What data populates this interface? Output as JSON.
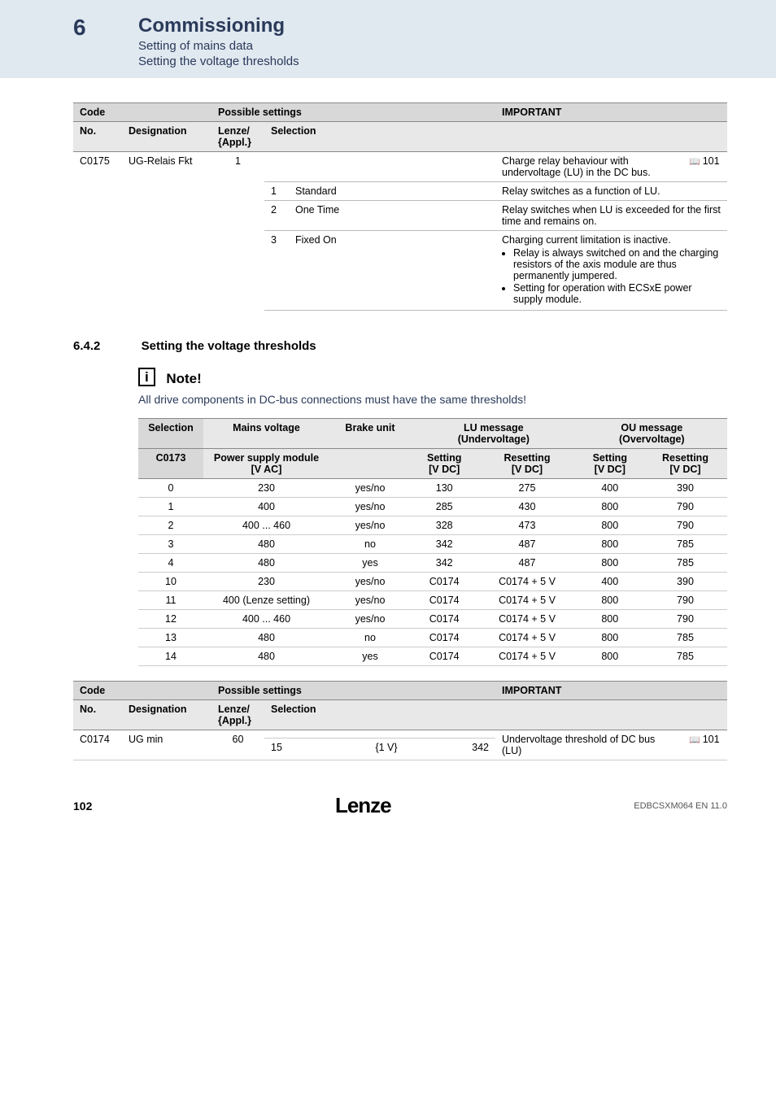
{
  "header": {
    "chapnum": "6",
    "title": "Commissioning",
    "sub1": "Setting of mains data",
    "sub2": "Setting the voltage thresholds"
  },
  "t1": {
    "head1": [
      "Code",
      "",
      "Possible settings",
      "",
      "IMPORTANT",
      ""
    ],
    "head2": [
      "No.",
      "Designation",
      "Lenze/\n{Appl.}",
      "Selection",
      "",
      ""
    ],
    "r0": [
      "C0175",
      "UG-Relais Fkt",
      "1",
      "",
      "Charge relay behaviour with undervoltage (LU) in the DC bus.",
      "101"
    ],
    "r1": [
      "",
      "",
      "",
      "1",
      "Standard",
      "Relay switches as a function of LU."
    ],
    "r2": [
      "",
      "",
      "",
      "2",
      "One Time",
      "Relay switches when LU is exceeded for the first time and remains on."
    ],
    "r3": [
      "",
      "",
      "",
      "3",
      "Fixed On",
      "Charging current limitation is inactive."
    ],
    "r3b": [
      "Relay is always switched on and the charging resistors of the axis module are thus permanently jumpered.",
      "Setting for operation with ECSxE power supply module."
    ]
  },
  "sec": {
    "num": "6.4.2",
    "title": "Setting the voltage thresholds"
  },
  "note": {
    "title": "Note!",
    "text": "All drive components in DC-bus connections must have the same thresholds!"
  },
  "t2": {
    "h1": [
      "Selection",
      "Mains voltage",
      "Brake unit",
      "LU message\n(Undervoltage)",
      "OU message\n(Overvoltage)"
    ],
    "h2": [
      "C0173",
      "Power supply module\n[V AC]",
      "",
      "Setting\n[V DC]",
      "Resetting\n[V DC]",
      "Setting\n[V DC]",
      "Resetting\n[V DC]"
    ],
    "rows": [
      [
        "0",
        "230",
        "yes/no",
        "130",
        "275",
        "400",
        "390"
      ],
      [
        "1",
        "400",
        "yes/no",
        "285",
        "430",
        "800",
        "790"
      ],
      [
        "2",
        "400 ... 460",
        "yes/no",
        "328",
        "473",
        "800",
        "790"
      ],
      [
        "3",
        "480",
        "no",
        "342",
        "487",
        "800",
        "785"
      ],
      [
        "4",
        "480",
        "yes",
        "342",
        "487",
        "800",
        "785"
      ],
      [
        "10",
        "230",
        "yes/no",
        "C0174",
        "C0174 + 5 V",
        "400",
        "390"
      ],
      [
        "11",
        "400 (Lenze setting)",
        "yes/no",
        "C0174",
        "C0174 + 5 V",
        "800",
        "790"
      ],
      [
        "12",
        "400 ... 460",
        "yes/no",
        "C0174",
        "C0174 + 5 V",
        "800",
        "790"
      ],
      [
        "13",
        "480",
        "no",
        "C0174",
        "C0174 + 5 V",
        "800",
        "785"
      ],
      [
        "14",
        "480",
        "yes",
        "C0174",
        "C0174 + 5 V",
        "800",
        "785"
      ]
    ]
  },
  "t3": {
    "head1": [
      "Code",
      "",
      "Possible settings",
      "",
      "",
      "",
      "IMPORTANT",
      ""
    ],
    "head2": [
      "No.",
      "Designation",
      "Lenze/\n{Appl.}",
      "Selection",
      "",
      "",
      "",
      ""
    ],
    "r0": [
      "C0174",
      "UG min",
      "60",
      "",
      "",
      "",
      "Undervoltage threshold of DC bus (LU)",
      "101"
    ],
    "r1": [
      "",
      "",
      "",
      "15",
      "{1 V}",
      "342",
      "",
      ""
    ]
  },
  "footer": {
    "page": "102",
    "logo": "Lenze",
    "doc": "EDBCSXM064 EN 11.0"
  }
}
